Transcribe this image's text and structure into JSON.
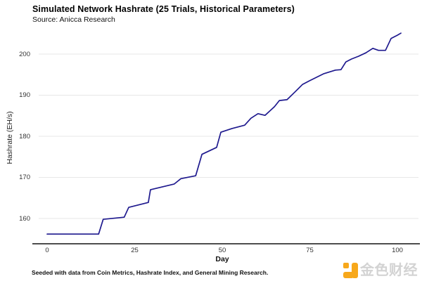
{
  "header": {
    "title": "Simulated Network Hashrate (25 Trials, Historical Parameters)",
    "subtitle": "Source: Anicca Research"
  },
  "footer": {
    "note": "Seeded with data from Coin Metrics, Hashrate Index, and General Mining Research."
  },
  "watermark": {
    "brand": "金色财经",
    "icon_color": "#F7A81B",
    "text_color": "#d3d3d3"
  },
  "chart_data": {
    "type": "line",
    "title": "Simulated Network Hashrate (25 Trials, Historical Parameters)",
    "subtitle": "Source: Anicca Research",
    "xlabel": "Day",
    "ylabel": "Hashrate (EH/s)",
    "x_ticks": [
      0,
      25,
      50,
      75,
      100
    ],
    "y_ticks": [
      160,
      170,
      180,
      190,
      200
    ],
    "xlim": [
      0,
      106
    ],
    "ylim": [
      154,
      206
    ],
    "grid": "horizontal",
    "legend": "none",
    "line_color": "#1e198e",
    "grid_color": "#e7e7e7",
    "axis_color": "#4d4d4d",
    "series": [
      {
        "name": "Simulated network hashrate",
        "points": [
          [
            0,
            156.2
          ],
          [
            14.7,
            156.2
          ],
          [
            16,
            159.8
          ],
          [
            22,
            160.3
          ],
          [
            23.3,
            162.7
          ],
          [
            28.9,
            163.9
          ],
          [
            29.5,
            167.0
          ],
          [
            36.3,
            168.4
          ],
          [
            38.2,
            169.7
          ],
          [
            42.4,
            170.4
          ],
          [
            44.2,
            175.6
          ],
          [
            48.4,
            177.3
          ],
          [
            49.6,
            181.0
          ],
          [
            52.8,
            181.9
          ],
          [
            56.4,
            182.7
          ],
          [
            58.2,
            184.4
          ],
          [
            60.2,
            185.5
          ],
          [
            62.2,
            185.1
          ],
          [
            64.9,
            187.2
          ],
          [
            66.3,
            188.7
          ],
          [
            68.5,
            188.9
          ],
          [
            70.9,
            190.9
          ],
          [
            72.9,
            192.6
          ],
          [
            74.9,
            193.5
          ],
          [
            78.9,
            195.2
          ],
          [
            82.3,
            196.1
          ],
          [
            83.9,
            196.2
          ],
          [
            85.3,
            198.1
          ],
          [
            86.9,
            198.8
          ],
          [
            89,
            199.5
          ],
          [
            91,
            200.3
          ],
          [
            93,
            201.4
          ],
          [
            94.6,
            200.9
          ],
          [
            96.6,
            200.9
          ],
          [
            98.2,
            203.8
          ],
          [
            100,
            204.6
          ],
          [
            101,
            205.1
          ]
        ]
      }
    ]
  }
}
